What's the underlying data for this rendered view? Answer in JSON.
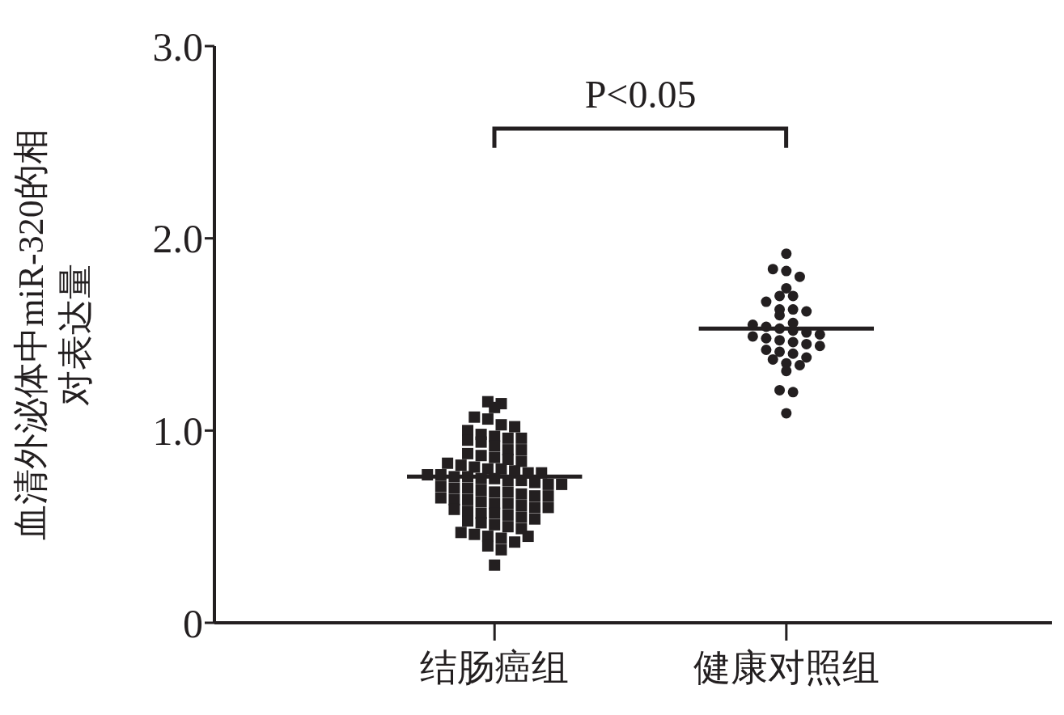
{
  "chart_data": {
    "type": "scatter",
    "ylabel": "血清外泌体中miR-320的相对表达量",
    "categories": [
      "结肠癌组",
      "健康对照组"
    ],
    "ylim": [
      0,
      3
    ],
    "yticks": [
      {
        "value": 0,
        "label": "0"
      },
      {
        "value": 1,
        "label": "1.0"
      },
      {
        "value": 2,
        "label": "2.0"
      },
      {
        "value": 3,
        "label": "3.0"
      }
    ],
    "series": [
      {
        "color": "#231f20",
        "marker": "square",
        "x": [
          "结肠癌组",
          "结肠癌组",
          "结肠癌组",
          "结肠癌组",
          "结肠癌组",
          "结肠癌组",
          "结肠癌组",
          "结肠癌组",
          "结肠癌组",
          "结肠癌组",
          "结肠癌组",
          "结肠癌组",
          "结肠癌组",
          "结肠癌组",
          "结肠癌组",
          "结肠癌组",
          "结肠癌组",
          "结肠癌组",
          "结肠癌组",
          "结肠癌组",
          "结肠癌组",
          "结肠癌组",
          "结肠癌组",
          "结肠癌组",
          "结肠癌组",
          "结肠癌组",
          "结肠癌组",
          "结肠癌组",
          "结肠癌组",
          "结肠癌组",
          "结肠癌组",
          "结肠癌组",
          "结肠癌组",
          "结肠癌组",
          "结肠癌组",
          "结肠癌组",
          "结肠癌组",
          "结肠癌组",
          "结肠癌组",
          "结肠癌组",
          "结肠癌组",
          "结肠癌组",
          "结肠癌组",
          "结肠癌组",
          "结肠癌组",
          "结肠癌组",
          "结肠癌组",
          "结肠癌组",
          "结肠癌组",
          "结肠癌组",
          "结肠癌组",
          "结肠癌组",
          "结肠癌组",
          "结肠癌组",
          "结肠癌组",
          "结肠癌组",
          "结肠癌组",
          "结肠癌组",
          "结肠癌组",
          "结肠癌组",
          "结肠癌组",
          "结肠癌组",
          "结肠癌组",
          "结肠癌组",
          "结肠癌组",
          "结肠癌组",
          "结肠癌组",
          "结肠癌组",
          "结肠癌组",
          "结肠癌组",
          "结肠癌组",
          "结肠癌组",
          "结肠癌组",
          "结肠癌组",
          "结肠癌组",
          "结肠癌组",
          "结肠癌组",
          "结肠癌组",
          "结肠癌组",
          "结肠癌组"
        ],
        "values": [
          1.15,
          1.14,
          1.12,
          1.07,
          1.06,
          1.03,
          1.02,
          1.0,
          0.98,
          0.97,
          0.96,
          0.96,
          0.95,
          0.94,
          0.92,
          0.9,
          0.9,
          0.88,
          0.87,
          0.86,
          0.85,
          0.84,
          0.83,
          0.82,
          0.81,
          0.8,
          0.8,
          0.79,
          0.78,
          0.78,
          0.77,
          0.77,
          0.76,
          0.76,
          0.75,
          0.75,
          0.74,
          0.74,
          0.73,
          0.72,
          0.72,
          0.71,
          0.7,
          0.7,
          0.69,
          0.68,
          0.68,
          0.67,
          0.66,
          0.66,
          0.65,
          0.64,
          0.64,
          0.63,
          0.62,
          0.62,
          0.61,
          0.6,
          0.6,
          0.59,
          0.58,
          0.57,
          0.57,
          0.56,
          0.55,
          0.54,
          0.53,
          0.52,
          0.51,
          0.5,
          0.49,
          0.47,
          0.46,
          0.45,
          0.44,
          0.42,
          0.4,
          0.38,
          0.45,
          0.3
        ]
      },
      {
        "color": "#231f20",
        "marker": "circle",
        "x": [
          "健康对照组",
          "健康对照组",
          "健康对照组",
          "健康对照组",
          "健康对照组",
          "健康对照组",
          "健康对照组",
          "健康对照组",
          "健康对照组",
          "健康对照组",
          "健康对照组",
          "健康对照组",
          "健康对照组",
          "健康对照组",
          "健康对照组",
          "健康对照组",
          "健康对照组",
          "健康对照组",
          "健康对照组",
          "健康对照组",
          "健康对照组",
          "健康对照组",
          "健康对照组",
          "健康对照组",
          "健康对照组",
          "健康对照组",
          "健康对照组",
          "健康对照组",
          "健康对照组",
          "健康对照组",
          "健康对照组",
          "健康对照组",
          "健康对照组",
          "健康对照组",
          "健康对照组",
          "健康对照组"
        ],
        "values": [
          1.92,
          1.84,
          1.83,
          1.8,
          1.74,
          1.7,
          1.7,
          1.67,
          1.63,
          1.63,
          1.62,
          1.6,
          1.56,
          1.55,
          1.54,
          1.53,
          1.52,
          1.51,
          1.5,
          1.49,
          1.48,
          1.47,
          1.46,
          1.45,
          1.44,
          1.42,
          1.41,
          1.4,
          1.38,
          1.37,
          1.35,
          1.34,
          1.31,
          1.21,
          1.2,
          1.09
        ]
      }
    ],
    "ref_lines": [
      {
        "axis": "y",
        "value": 0.76,
        "color": "#231f20"
      },
      {
        "axis": "y",
        "value": 1.53,
        "color": "#231f20"
      }
    ],
    "annotations": [
      "P<0.05"
    ]
  }
}
